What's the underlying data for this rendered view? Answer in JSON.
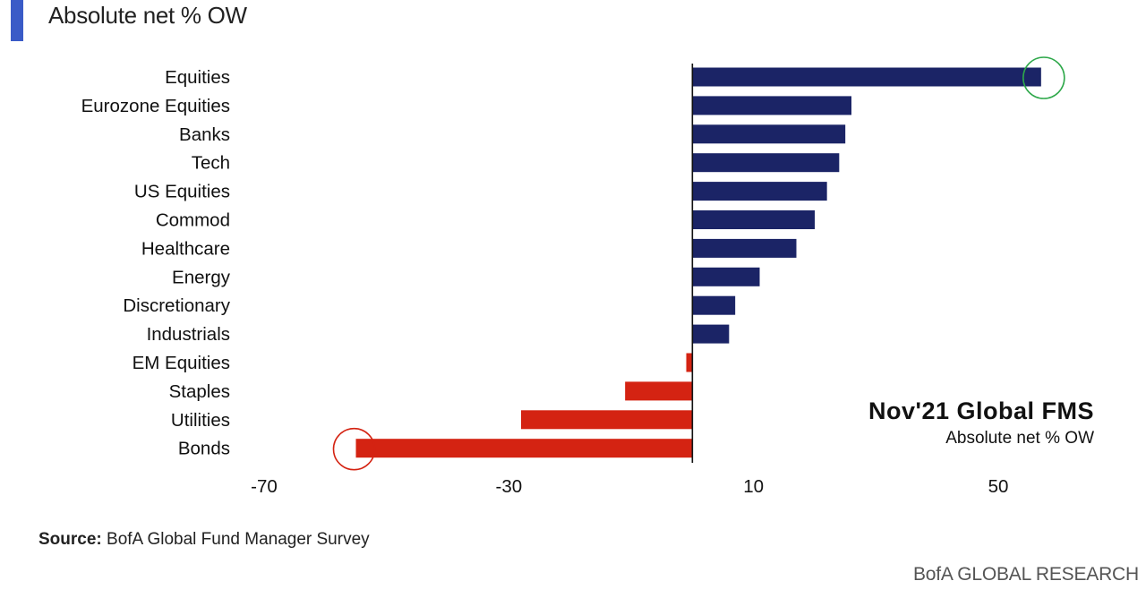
{
  "header": {
    "title": "Absolute net % OW"
  },
  "chart_data": {
    "type": "bar",
    "orientation": "horizontal",
    "categories": [
      "Equities",
      "Eurozone Equities",
      "Banks",
      "Tech",
      "US Equities",
      "Commod",
      "Healthcare",
      "Energy",
      "Discretionary",
      "Industrials",
      "EM Equities",
      "Staples",
      "Utilities",
      "Bonds"
    ],
    "values": [
      57,
      26,
      25,
      24,
      22,
      20,
      17,
      11,
      7,
      6,
      -1,
      -11,
      -28,
      -55
    ],
    "positive_color": "#1b2466",
    "negative_color": "#d42312",
    "highlight_color": "#2ea84a",
    "highlighted": [
      "Equities",
      "Bonds"
    ],
    "xticks": [
      -70,
      -30,
      10,
      50
    ],
    "xlim": [
      -70,
      64
    ],
    "grid": false,
    "annotation_title": "Nov'21 Global FMS",
    "annotation_subtitle": "Absolute net % OW"
  },
  "footer": {
    "source_label": "Source:",
    "source_text": " BofA Global Fund Manager Survey",
    "brand": "BofA GLOBAL RESEARCH"
  }
}
